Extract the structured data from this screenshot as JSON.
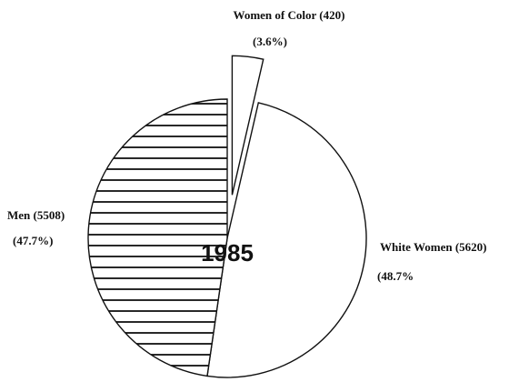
{
  "chart_data": {
    "type": "pie",
    "title": "1985",
    "categories": [
      "Women of Color (420)",
      "White Women (5620)",
      "Men (5508)"
    ],
    "values": [
      3.6,
      48.7,
      47.7
    ],
    "value_labels": [
      "(3.6%)",
      "(48.7%",
      "(47.7%)"
    ],
    "fills": [
      "white",
      "white",
      "hatch"
    ],
    "explode": [
      true,
      false,
      false
    ]
  }
}
